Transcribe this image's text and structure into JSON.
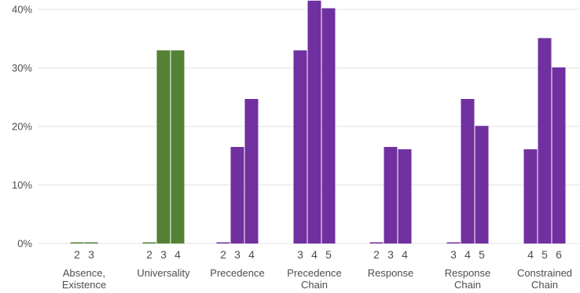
{
  "chart_data": {
    "type": "bar",
    "title": "",
    "xlabel": "",
    "ylabel": "",
    "ylim": [
      0,
      40
    ],
    "yticks": [
      0,
      10,
      20,
      30,
      40
    ],
    "ytick_labels": [
      "0%",
      "10%",
      "20%",
      "30%",
      "40%"
    ],
    "grid": true,
    "colors": {
      "green": "#548235",
      "purple": "#7030a0"
    },
    "groups": [
      {
        "label_lines": [
          "Absence,",
          "Existence"
        ],
        "bars": [
          {
            "x": "2",
            "value": 0,
            "color": "green"
          },
          {
            "x": "3",
            "value": 0,
            "color": "green"
          }
        ]
      },
      {
        "label_lines": [
          "Universality"
        ],
        "bars": [
          {
            "x": "2",
            "value": 0,
            "color": "green"
          },
          {
            "x": "3",
            "value": 33,
            "color": "green"
          },
          {
            "x": "4",
            "value": 33,
            "color": "green"
          }
        ]
      },
      {
        "label_lines": [
          "Precedence"
        ],
        "bars": [
          {
            "x": "2",
            "value": 0,
            "color": "purple"
          },
          {
            "x": "3",
            "value": 16.5,
            "color": "purple"
          },
          {
            "x": "4",
            "value": 24.7,
            "color": "purple"
          }
        ]
      },
      {
        "label_lines": [
          "Precedence",
          "Chain"
        ],
        "bars": [
          {
            "x": "3",
            "value": 33,
            "color": "purple"
          },
          {
            "x": "4",
            "value": 41.5,
            "color": "purple"
          },
          {
            "x": "5",
            "value": 40.2,
            "color": "purple"
          }
        ]
      },
      {
        "label_lines": [
          "Response"
        ],
        "bars": [
          {
            "x": "2",
            "value": 0,
            "color": "purple"
          },
          {
            "x": "3",
            "value": 16.5,
            "color": "purple"
          },
          {
            "x": "4",
            "value": 16.1,
            "color": "purple"
          }
        ]
      },
      {
        "label_lines": [
          "Response",
          "Chain"
        ],
        "bars": [
          {
            "x": "3",
            "value": 0,
            "color": "purple"
          },
          {
            "x": "4",
            "value": 24.7,
            "color": "purple"
          },
          {
            "x": "5",
            "value": 20.1,
            "color": "purple"
          }
        ]
      },
      {
        "label_lines": [
          "Constrained",
          "Chain"
        ],
        "bars": [
          {
            "x": "4",
            "value": 16.1,
            "color": "purple"
          },
          {
            "x": "5",
            "value": 35.1,
            "color": "purple"
          },
          {
            "x": "6",
            "value": 30.1,
            "color": "purple"
          }
        ]
      }
    ]
  }
}
